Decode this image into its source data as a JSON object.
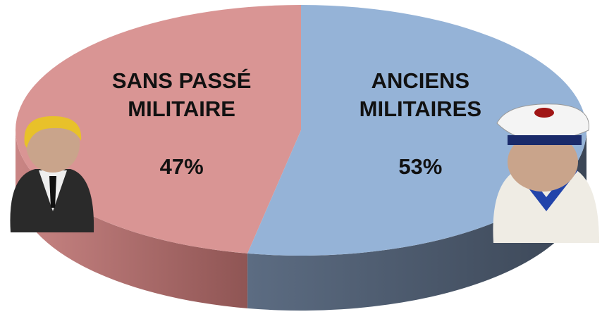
{
  "chart_data": {
    "type": "pie",
    "categories": [
      "SANS PASSÉ MILITAIRE",
      "ANCIENS MILITAIRES"
    ],
    "values": [
      47,
      53
    ],
    "value_labels": [
      "47%",
      "53%"
    ],
    "colors": [
      "#d99594",
      "#95b3d7"
    ]
  }
}
